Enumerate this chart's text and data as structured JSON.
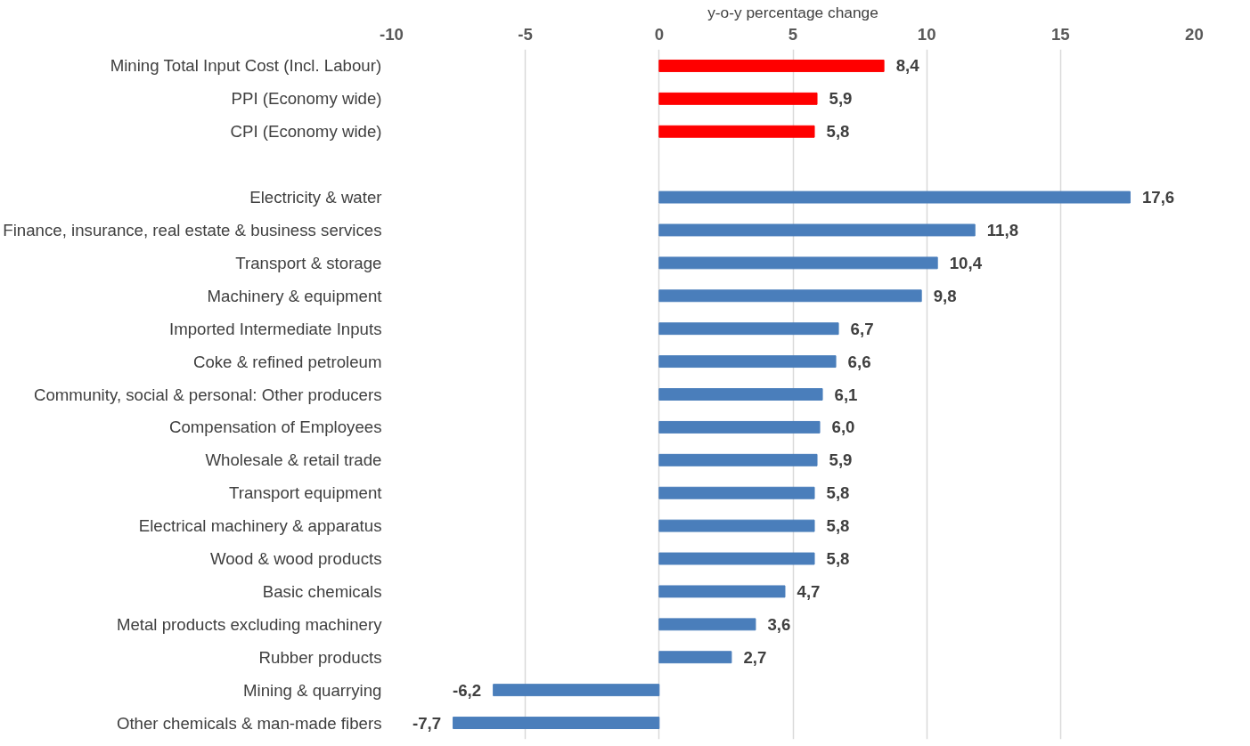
{
  "chart_data": {
    "type": "bar",
    "orientation": "horizontal",
    "xlabel": "y-o-y percentage change",
    "categories": [
      "Mining Total Input Cost (Incl. Labour)",
      "PPI (Economy wide)",
      "CPI (Economy wide)",
      null,
      "Electricity & water",
      "Finance, insurance, real estate & business services",
      "Transport & storage",
      "Machinery & equipment",
      "Imported Intermediate Inputs",
      "Coke & refined petroleum",
      "Community, social & personal: Other producers",
      "Compensation of Employees",
      "Wholesale & retail trade",
      "Transport equipment",
      "Electrical machinery & apparatus",
      "Wood & wood products",
      "Basic chemicals",
      "Metal products excluding machinery",
      "Rubber products",
      "Mining & quarrying",
      "Other chemicals & man-made fibers"
    ],
    "values": [
      8.4,
      5.9,
      5.8,
      null,
      17.6,
      11.8,
      10.4,
      9.8,
      6.7,
      6.6,
      6.1,
      6.0,
      5.9,
      5.8,
      5.8,
      5.8,
      4.7,
      3.6,
      2.7,
      -6.2,
      -7.7
    ],
    "value_labels": [
      "8,4",
      "5,9",
      "5,8",
      null,
      "17,6",
      "11,8",
      "10,4",
      "9,8",
      "6,7",
      "6,6",
      "6,1",
      "6,0",
      "5,9",
      "5,8",
      "5,8",
      "5,8",
      "4,7",
      "3,6",
      "2,7",
      "-6,2",
      "-7,7"
    ],
    "colors": [
      "#ff0000",
      "#ff0000",
      "#ff0000",
      null,
      "#4a7ebb",
      "#4a7ebb",
      "#4a7ebb",
      "#4a7ebb",
      "#4a7ebb",
      "#4a7ebb",
      "#4a7ebb",
      "#4a7ebb",
      "#4a7ebb",
      "#4a7ebb",
      "#4a7ebb",
      "#4a7ebb",
      "#4a7ebb",
      "#4a7ebb",
      "#4a7ebb",
      "#4a7ebb",
      "#4a7ebb"
    ],
    "xlim": [
      -10,
      20
    ],
    "xticks": [
      -10,
      -5,
      0,
      5,
      10,
      15,
      20
    ],
    "grid": "x"
  }
}
